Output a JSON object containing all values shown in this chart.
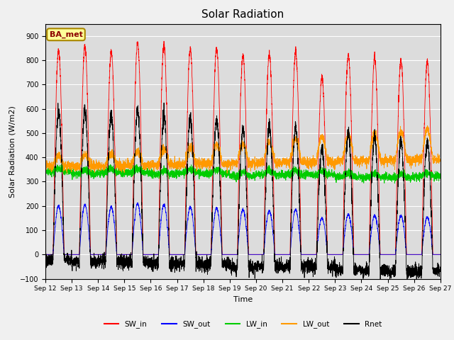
{
  "title": "Solar Radiation",
  "ylabel": "Solar Radiation (W/m2)",
  "xlabel": "Time",
  "annotation": "BA_met",
  "ylim": [
    -100,
    950
  ],
  "yticks": [
    -100,
    0,
    100,
    200,
    300,
    400,
    500,
    600,
    700,
    800,
    900
  ],
  "plot_bg": "#dcdcdc",
  "fig_bg": "#f0f0f0",
  "legend": [
    "SW_in",
    "SW_out",
    "LW_in",
    "LW_out",
    "Rnet"
  ],
  "colors": {
    "SW_in": "#ff0000",
    "SW_out": "#0000ff",
    "LW_in": "#00cc00",
    "LW_out": "#ff9900",
    "Rnet": "#000000"
  },
  "num_days": 15,
  "start_day": 12,
  "pts_per_day": 288
}
